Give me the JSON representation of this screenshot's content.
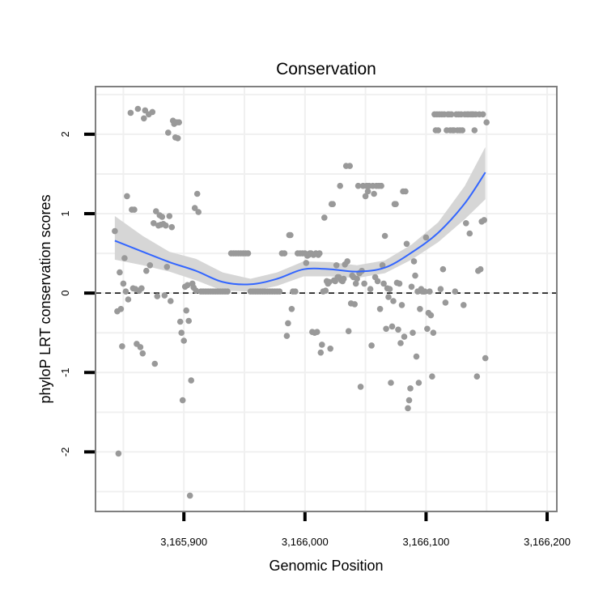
{
  "chart_data": {
    "type": "scatter",
    "title": "Conservation",
    "xlabel": "Genomic Position",
    "ylabel": "phyloP LRT conservation scores",
    "xlim": [
      3165827,
      3166208
    ],
    "ylim": [
      -2.75,
      2.6
    ],
    "xticks": [
      3165900,
      3166000,
      3166100,
      3166200
    ],
    "xtick_labels": [
      "3,165,900",
      "3,166,000",
      "3,166,100",
      "3,166,200"
    ],
    "yticks": [
      -2,
      -1,
      0,
      1,
      2
    ],
    "ytick_labels": [
      "-2",
      "-1",
      "0",
      "1",
      "2"
    ],
    "grid": true,
    "reference_line": {
      "y": 0,
      "style": "dashed"
    },
    "colors": {
      "points": "#999999",
      "smooth_line": "#3366ff",
      "confidence_band": "#d4d4d4",
      "grid": "#f0f0f0",
      "panel_border": "#7f7f7f",
      "reference_line": "#000000"
    },
    "series": [
      {
        "name": "phyloP scores",
        "type": "scatter",
        "points": [
          [
            3165843,
            0.78
          ],
          [
            3165845,
            -0.23
          ],
          [
            3165846,
            -2.02
          ],
          [
            3165847,
            0.26
          ],
          [
            3165848,
            -0.2
          ],
          [
            3165849,
            -0.67
          ],
          [
            3165850,
            0.12
          ],
          [
            3165851,
            0.44
          ],
          [
            3165852,
            0.02
          ],
          [
            3165853,
            1.22
          ],
          [
            3165854,
            -0.08
          ],
          [
            3165856,
            2.27
          ],
          [
            3165857,
            1.05
          ],
          [
            3165858,
            0.06
          ],
          [
            3165859,
            1.05
          ],
          [
            3165860,
            0.05
          ],
          [
            3165861,
            -0.64
          ],
          [
            3165862,
            2.32
          ],
          [
            3165863,
            0.03
          ],
          [
            3165864,
            -0.68
          ],
          [
            3165865,
            0.06
          ],
          [
            3165866,
            -0.76
          ],
          [
            3165867,
            2.2
          ],
          [
            3165868,
            2.3
          ],
          [
            3165869,
            0.28
          ],
          [
            3165871,
            2.25
          ],
          [
            3165872,
            0.35
          ],
          [
            3165874,
            2.28
          ],
          [
            3165875,
            0.88
          ],
          [
            3165876,
            -0.89
          ],
          [
            3165877,
            1.03
          ],
          [
            3165878,
            -0.04
          ],
          [
            3165879,
            0.85
          ],
          [
            3165880,
            0.98
          ],
          [
            3165881,
            0.86
          ],
          [
            3165882,
            0.96
          ],
          [
            3165883,
            0.87
          ],
          [
            3165884,
            -0.03
          ],
          [
            3165885,
            0.85
          ],
          [
            3165886,
            0.33
          ],
          [
            3165887,
            2.02
          ],
          [
            3165888,
            0.97
          ],
          [
            3165889,
            -0.1
          ],
          [
            3165890,
            0.83
          ],
          [
            3165891,
            2.17
          ],
          [
            3165892,
            2.13
          ],
          [
            3165893,
            1.96
          ],
          [
            3165894,
            2.15
          ],
          [
            3165895,
            1.95
          ],
          [
            3165896,
            2.15
          ],
          [
            3165897,
            -0.36
          ],
          [
            3165898,
            -0.5
          ],
          [
            3165899,
            -1.35
          ],
          [
            3165900,
            -0.6
          ],
          [
            3165901,
            0.08
          ],
          [
            3165902,
            -0.22
          ],
          [
            3165903,
            0.1
          ],
          [
            3165904,
            -0.35
          ],
          [
            3165905,
            -2.55
          ],
          [
            3165906,
            -1.1
          ],
          [
            3165907,
            0.12
          ],
          [
            3165908,
            0.07
          ],
          [
            3165909,
            1.07
          ],
          [
            3165910,
            0.03
          ],
          [
            3165911,
            1.25
          ],
          [
            3165912,
            1.02
          ],
          [
            3165914,
            0.02
          ],
          [
            3165916,
            0.02
          ],
          [
            3165918,
            0.02
          ],
          [
            3165920,
            0.02
          ],
          [
            3165922,
            0.02
          ],
          [
            3165924,
            0.02
          ],
          [
            3165926,
            0.02
          ],
          [
            3165928,
            0.02
          ],
          [
            3165930,
            0.02
          ],
          [
            3165932,
            0.02
          ],
          [
            3165934,
            0.02
          ],
          [
            3165936,
            0.02
          ],
          [
            3165939,
            0.5
          ],
          [
            3165941,
            0.5
          ],
          [
            3165943,
            0.5
          ],
          [
            3165945,
            0.5
          ],
          [
            3165947,
            0.5
          ],
          [
            3165949,
            0.5
          ],
          [
            3165951,
            0.5
          ],
          [
            3165953,
            0.5
          ],
          [
            3165955,
            0.02
          ],
          [
            3165957,
            0.02
          ],
          [
            3165959,
            0.02
          ],
          [
            3165961,
            0.02
          ],
          [
            3165963,
            0.02
          ],
          [
            3165965,
            0.02
          ],
          [
            3165967,
            0.02
          ],
          [
            3165969,
            0.02
          ],
          [
            3165971,
            0.02
          ],
          [
            3165973,
            0.02
          ],
          [
            3165975,
            0.02
          ],
          [
            3165977,
            0.02
          ],
          [
            3165979,
            0.02
          ],
          [
            3165981,
            0.5
          ],
          [
            3165983,
            0.5
          ],
          [
            3165985,
            -0.54
          ],
          [
            3165986,
            -0.38
          ],
          [
            3165987,
            0.73
          ],
          [
            3165988,
            0.73
          ],
          [
            3165989,
            -0.2
          ],
          [
            3165990,
            0.02
          ],
          [
            3165992,
            0.02
          ],
          [
            3165994,
            0.5
          ],
          [
            3165996,
            0.5
          ],
          [
            3165998,
            0.5
          ],
          [
            3166000,
            0.5
          ],
          [
            3166001,
            0.38
          ],
          [
            3166002,
            0.47
          ],
          [
            3166003,
            0.48
          ],
          [
            3166004,
            0.5
          ],
          [
            3166005,
            0.5
          ],
          [
            3166006,
            -0.49
          ],
          [
            3166007,
            0.48
          ],
          [
            3166008,
            -0.5
          ],
          [
            3166009,
            0.5
          ],
          [
            3166010,
            -0.49
          ],
          [
            3166011,
            0.48
          ],
          [
            3166012,
            0.5
          ],
          [
            3166013,
            -0.75
          ],
          [
            3166014,
            -0.65
          ],
          [
            3166015,
            0.02
          ],
          [
            3166016,
            0.95
          ],
          [
            3166017,
            0.03
          ],
          [
            3166018,
            0.15
          ],
          [
            3166019,
            0.12
          ],
          [
            3166020,
            0.14
          ],
          [
            3166021,
            -0.7
          ],
          [
            3166022,
            1.12
          ],
          [
            3166023,
            1.12
          ],
          [
            3166024,
            0.16
          ],
          [
            3166025,
            0.15
          ],
          [
            3166026,
            0.35
          ],
          [
            3166027,
            0.2
          ],
          [
            3166028,
            0.2
          ],
          [
            3166029,
            1.35
          ],
          [
            3166030,
            0.16
          ],
          [
            3166031,
            0.15
          ],
          [
            3166032,
            0.18
          ],
          [
            3166033,
            0.36
          ],
          [
            3166034,
            1.6
          ],
          [
            3166035,
            0.4
          ],
          [
            3166036,
            -0.48
          ],
          [
            3166037,
            1.6
          ],
          [
            3166038,
            -0.13
          ],
          [
            3166039,
            0.22
          ],
          [
            3166040,
            0.2
          ],
          [
            3166041,
            -0.14
          ],
          [
            3166042,
            0.12
          ],
          [
            3166043,
            0.18
          ],
          [
            3166044,
            1.35
          ],
          [
            3166045,
            0.25
          ],
          [
            3166046,
            -1.18
          ],
          [
            3166047,
            0.28
          ],
          [
            3166048,
            1.35
          ],
          [
            3166049,
            0.12
          ],
          [
            3166050,
            1.22
          ],
          [
            3166051,
            1.35
          ],
          [
            3166052,
            1.28
          ],
          [
            3166053,
            1.35
          ],
          [
            3166054,
            0.05
          ],
          [
            3166055,
            -0.66
          ],
          [
            3166056,
            1.35
          ],
          [
            3166057,
            1.25
          ],
          [
            3166058,
            0.2
          ],
          [
            3166059,
            1.35
          ],
          [
            3166060,
            0.15
          ],
          [
            3166061,
            1.35
          ],
          [
            3166062,
            -0.2
          ],
          [
            3166063,
            1.35
          ],
          [
            3166064,
            0.35
          ],
          [
            3166065,
            0.12
          ],
          [
            3166066,
            0.72
          ],
          [
            3166067,
            -0.45
          ],
          [
            3166068,
            0.06
          ],
          [
            3166069,
            -0.05
          ],
          [
            3166070,
            0.05
          ],
          [
            3166071,
            -1.13
          ],
          [
            3166072,
            -0.42
          ],
          [
            3166073,
            -0.1
          ],
          [
            3166074,
            1.12
          ],
          [
            3166075,
            1.12
          ],
          [
            3166076,
            0.13
          ],
          [
            3166077,
            -0.46
          ],
          [
            3166078,
            0.12
          ],
          [
            3166079,
            -0.63
          ],
          [
            3166080,
            -0.15
          ],
          [
            3166081,
            1.28
          ],
          [
            3166082,
            -0.55
          ],
          [
            3166083,
            1.28
          ],
          [
            3166084,
            0.62
          ],
          [
            3166085,
            -1.45
          ],
          [
            3166086,
            -1.35
          ],
          [
            3166087,
            -1.2
          ],
          [
            3166088,
            0.08
          ],
          [
            3166089,
            -0.5
          ],
          [
            3166090,
            0.4
          ],
          [
            3166091,
            0.22
          ],
          [
            3166092,
            -0.8
          ],
          [
            3166093,
            0.02
          ],
          [
            3166094,
            -1.13
          ],
          [
            3166095,
            -0.2
          ],
          [
            3166096,
            0.05
          ],
          [
            3166097,
            0.02
          ],
          [
            3166098,
            0.02
          ],
          [
            3166099,
            0.02
          ],
          [
            3166100,
            0.7
          ],
          [
            3166101,
            -0.45
          ],
          [
            3166102,
            -0.25
          ],
          [
            3166103,
            0.02
          ],
          [
            3166104,
            -0.28
          ],
          [
            3166105,
            -1.05
          ],
          [
            3166106,
            -0.5
          ],
          [
            3166107,
            2.25
          ],
          [
            3166108,
            2.05
          ],
          [
            3166109,
            2.25
          ],
          [
            3166110,
            2.05
          ],
          [
            3166111,
            2.25
          ],
          [
            3166112,
            0.05
          ],
          [
            3166113,
            2.25
          ],
          [
            3166114,
            0.3
          ],
          [
            3166115,
            2.25
          ],
          [
            3166116,
            -0.12
          ],
          [
            3166117,
            2.05
          ],
          [
            3166118,
            2.25
          ],
          [
            3166119,
            2.25
          ],
          [
            3166120,
            2.05
          ],
          [
            3166121,
            2.25
          ],
          [
            3166122,
            2.05
          ],
          [
            3166123,
            2.05
          ],
          [
            3166124,
            0.02
          ],
          [
            3166125,
            2.25
          ],
          [
            3166126,
            2.05
          ],
          [
            3166127,
            2.25
          ],
          [
            3166128,
            2.05
          ],
          [
            3166129,
            2.25
          ],
          [
            3166130,
            2.05
          ],
          [
            3166131,
            -0.15
          ],
          [
            3166132,
            2.25
          ],
          [
            3166133,
            0.88
          ],
          [
            3166134,
            2.25
          ],
          [
            3166135,
            2.25
          ],
          [
            3166136,
            0.75
          ],
          [
            3166137,
            2.25
          ],
          [
            3166138,
            2.25
          ],
          [
            3166139,
            2.25
          ],
          [
            3166140,
            2.05
          ],
          [
            3166141,
            2.25
          ],
          [
            3166142,
            -1.05
          ],
          [
            3166143,
            0.28
          ],
          [
            3166144,
            2.25
          ],
          [
            3166145,
            0.3
          ],
          [
            3166146,
            0.9
          ],
          [
            3166147,
            2.25
          ],
          [
            3166148,
            0.92
          ],
          [
            3166149,
            -0.82
          ],
          [
            3166150,
            2.15
          ]
        ]
      },
      {
        "name": "loess fit",
        "type": "line",
        "x": [
          3165843,
          3165866,
          3165888,
          3165910,
          3165932,
          3165955,
          3165977,
          3165999,
          3166021,
          3166043,
          3166066,
          3166088,
          3166110,
          3166132,
          3166149
        ],
        "y": [
          0.66,
          0.52,
          0.39,
          0.28,
          0.14,
          0.11,
          0.18,
          0.3,
          0.3,
          0.27,
          0.32,
          0.51,
          0.76,
          1.13,
          1.52
        ],
        "lower": [
          0.42,
          0.35,
          0.27,
          0.16,
          0.03,
          0.02,
          0.09,
          0.21,
          0.21,
          0.19,
          0.25,
          0.42,
          0.64,
          0.93,
          1.18
        ],
        "upper": [
          0.97,
          0.72,
          0.52,
          0.43,
          0.26,
          0.18,
          0.26,
          0.4,
          0.39,
          0.35,
          0.41,
          0.61,
          0.89,
          1.35,
          1.84
        ]
      }
    ]
  }
}
